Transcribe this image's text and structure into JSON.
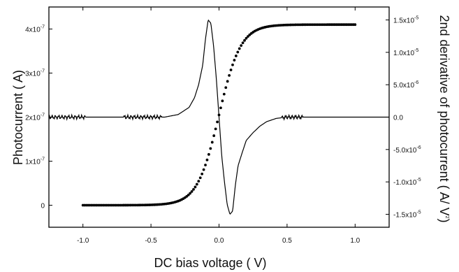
{
  "chart_data": {
    "type": "line",
    "title": "",
    "xlabel": "DC bias voltage ( V)",
    "ylabel_left": "Photocurrent ( A)",
    "ylabel_right_main": "2nd derivative of photocurrent ( A/ V",
    "ylabel_right_sup": "2",
    "ylabel_right_end": ")",
    "xlim": [
      -1.25,
      1.25
    ],
    "ylim_left": [
      -5e-08,
      4.5e-07
    ],
    "ylim_right": [
      -1.7e-05,
      1.7e-05
    ],
    "x_ticks": [
      -1.0,
      -0.5,
      0.0,
      0.5,
      1.0
    ],
    "x_tick_labels": [
      "-1.0",
      "-0.5",
      "0.0",
      "0.5",
      "1.0"
    ],
    "y_left_ticks": [
      {
        "value": 0,
        "mantissa": "0",
        "exp": ""
      },
      {
        "value": 1e-07,
        "mantissa": "1x10",
        "exp": "-7"
      },
      {
        "value": 2e-07,
        "mantissa": "2x10",
        "exp": "-7"
      },
      {
        "value": 3e-07,
        "mantissa": "3x10",
        "exp": "-7"
      },
      {
        "value": 4e-07,
        "mantissa": "4x10",
        "exp": "-7"
      }
    ],
    "y_right_ticks": [
      {
        "value": 1.5e-05,
        "mantissa": "1.5x10",
        "exp": "-5"
      },
      {
        "value": 1e-05,
        "mantissa": "1.0x10",
        "exp": "-5"
      },
      {
        "value": 5e-06,
        "mantissa": "5.0x10",
        "exp": "-6"
      },
      {
        "value": 0,
        "mantissa": "0.0",
        "exp": ""
      },
      {
        "value": -5e-06,
        "mantissa": "-5.0x10",
        "exp": "-6"
      },
      {
        "value": -1e-05,
        "mantissa": "-1.0x10",
        "exp": "-5"
      },
      {
        "value": -1.5e-05,
        "mantissa": "-1.5x10",
        "exp": "-5"
      }
    ],
    "series": [
      {
        "axis": "left",
        "style": "dots",
        "x_range": [
          -1.0,
          1.0
        ],
        "low": 0,
        "high": 4.1e-07,
        "center": 0.0,
        "width": 0.08
      },
      {
        "axis": "right",
        "style": "line",
        "x_range": [
          -1.25,
          1.25
        ],
        "points": [
          [
            -0.4,
            0.0
          ],
          [
            -0.3,
            4e-07
          ],
          [
            -0.22,
            1.5e-06
          ],
          [
            -0.18,
            3e-06
          ],
          [
            -0.15,
            5e-06
          ],
          [
            -0.12,
            8e-06
          ],
          [
            -0.1,
            1.2e-05
          ],
          [
            -0.08,
            1.5e-05
          ],
          [
            -0.06,
            1.45e-05
          ],
          [
            -0.04,
            1.1e-05
          ],
          [
            -0.02,
            6e-06
          ],
          [
            0.0,
            0.0
          ],
          [
            0.02,
            -6e-06
          ],
          [
            0.04,
            -1e-05
          ],
          [
            0.06,
            -1.35e-05
          ],
          [
            0.08,
            -1.5e-05
          ],
          [
            0.1,
            -1.45e-05
          ],
          [
            0.12,
            -1.05e-05
          ],
          [
            0.14,
            -7.5e-06
          ],
          [
            0.17,
            -5.5e-06
          ],
          [
            0.2,
            -3.6e-06
          ],
          [
            0.25,
            -2.4e-06
          ],
          [
            0.3,
            -1.4e-06
          ],
          [
            0.35,
            -7e-07
          ],
          [
            0.42,
            -2e-07
          ],
          [
            0.5,
            0.0
          ]
        ],
        "noise": {
          "zones": [
            [
              -1.25,
              -0.98
            ],
            [
              -0.7,
              -0.42
            ],
            [
              0.46,
              0.62
            ]
          ],
          "amplitude": 3e-07
        }
      }
    ]
  }
}
